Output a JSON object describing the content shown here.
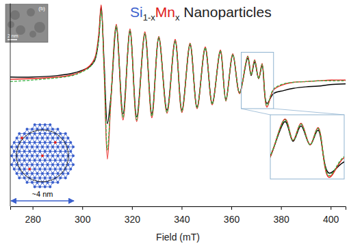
{
  "chart_data": {
    "type": "line",
    "title": "Si1-xMnx Nanoparticles",
    "x_label": "Field (mT)",
    "x": [
      271,
      280,
      290,
      296,
      300,
      303,
      305,
      306.5,
      307.6,
      308.8,
      310.1,
      311.5,
      313.7,
      316.4,
      319.2,
      321.9,
      325.2,
      328.0,
      330.8,
      334.1,
      337.4,
      340.1,
      343.4,
      346.2,
      349.5,
      352.3,
      355.6,
      357.8,
      360.6,
      363.3,
      366.6,
      368.0,
      369.4,
      371.0,
      372.4,
      374.3,
      377,
      381,
      385,
      390,
      395,
      400,
      406
    ],
    "series": [
      {
        "color": "#000000",
        "line_style": "solid",
        "values": [
          0.02,
          0.02,
          0.04,
          0.07,
          0.11,
          0.16,
          0.24,
          0.5,
          0.95,
          0.2,
          -0.6,
          -0.25,
          0.68,
          -0.47,
          0.63,
          -0.51,
          0.59,
          -0.47,
          0.54,
          -0.42,
          0.5,
          -0.42,
          0.45,
          -0.38,
          0.4,
          -0.33,
          0.36,
          -0.28,
          0.31,
          -0.19,
          0.27,
          0.04,
          0.22,
          0.0,
          0.17,
          -0.33,
          -0.2,
          -0.16,
          -0.13,
          -0.11,
          -0.1,
          -0.08,
          -0.07
        ]
      },
      {
        "color": "#e8231e",
        "line_style": "solid",
        "values": [
          -0.01,
          0.0,
          0.02,
          0.05,
          0.1,
          0.17,
          0.27,
          0.55,
          0.98,
          0.1,
          -1.07,
          -0.3,
          0.72,
          -0.55,
          0.66,
          -0.57,
          0.62,
          -0.52,
          0.56,
          -0.46,
          0.52,
          -0.45,
          0.47,
          -0.4,
          0.42,
          -0.35,
          0.38,
          -0.3,
          0.33,
          -0.2,
          0.3,
          0.05,
          0.25,
          0.0,
          0.2,
          -0.38,
          -0.15,
          -0.08,
          -0.05,
          -0.04,
          -0.03,
          -0.02,
          -0.02
        ]
      },
      {
        "color": "#3cb043",
        "line_style": "dashed",
        "values": [
          -0.04,
          -0.02,
          0.01,
          0.04,
          0.09,
          0.15,
          0.25,
          0.5,
          0.9,
          0.1,
          -0.95,
          -0.28,
          0.7,
          -0.52,
          0.64,
          -0.55,
          0.6,
          -0.5,
          0.55,
          -0.45,
          0.5,
          -0.44,
          0.46,
          -0.39,
          0.41,
          -0.34,
          0.37,
          -0.29,
          0.32,
          -0.19,
          0.29,
          0.05,
          0.24,
          0.0,
          0.19,
          -0.36,
          -0.14,
          -0.07,
          -0.05,
          -0.04,
          -0.03,
          -0.03,
          -0.03
        ]
      }
    ],
    "xlim": [
      271,
      406
    ],
    "xticks": [
      280,
      300,
      320,
      340,
      360,
      380,
      400
    ],
    "ylim": [
      -1.7,
      1.0
    ],
    "tick_labels": "x",
    "inset": {
      "xlim": [
        364,
        377
      ],
      "ylim": [
        -0.4,
        0.35
      ]
    },
    "annotations": [
      "(b)",
      "2 nm",
      "~4 nm"
    ]
  }
}
